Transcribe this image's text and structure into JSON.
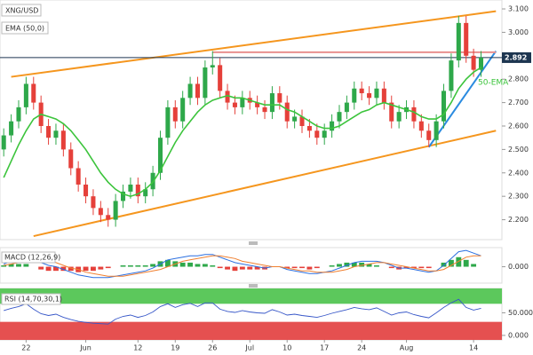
{
  "chart_data": {
    "type": "candlestick",
    "title": "XNG/USD",
    "xlim": [
      -0.5,
      66.8
    ],
    "ylim": [
      2.115,
      3.138
    ],
    "yticks": [
      {
        "value": 2.2,
        "label": "2.200"
      },
      {
        "value": 2.3,
        "label": "2.300"
      },
      {
        "value": 2.4,
        "label": "2.400"
      },
      {
        "value": 2.5,
        "label": "2.500"
      },
      {
        "value": 2.6,
        "label": "2.600"
      },
      {
        "value": 2.7,
        "label": "2.700"
      },
      {
        "value": 2.8,
        "label": "2.800"
      },
      {
        "value": 2.9,
        "label": "2.900"
      },
      {
        "value": 3.0,
        "label": "3.000"
      },
      {
        "value": 3.1,
        "label": "3.100"
      }
    ],
    "xticks": [
      {
        "value": 3,
        "label": "22"
      },
      {
        "value": 11,
        "label": "Jun"
      },
      {
        "value": 18,
        "label": "12"
      },
      {
        "value": 23,
        "label": "19"
      },
      {
        "value": 28,
        "label": "26"
      },
      {
        "value": 33,
        "label": "Jul"
      },
      {
        "value": 38,
        "label": "10"
      },
      {
        "value": 43,
        "label": "17"
      },
      {
        "value": 48,
        "label": "24"
      },
      {
        "value": 54,
        "label": "Aug"
      },
      {
        "value": 63,
        "label": "14"
      }
    ],
    "up_color": "#2ea84a",
    "down_color": "#e5403a",
    "open": [
      2.5,
      2.56,
      2.62,
      2.68,
      2.78,
      2.7,
      2.6,
      2.55,
      2.58,
      2.5,
      2.42,
      2.35,
      2.3,
      2.25,
      2.22,
      2.2,
      2.28,
      2.32,
      2.35,
      2.3,
      2.33,
      2.4,
      2.55,
      2.68,
      2.62,
      2.72,
      2.78,
      2.72,
      2.85,
      2.86,
      2.75,
      2.7,
      2.68,
      2.72,
      2.7,
      2.68,
      2.66,
      2.74,
      2.7,
      2.62,
      2.64,
      2.6,
      2.58,
      2.55,
      2.58,
      2.62,
      2.66,
      2.7,
      2.76,
      2.74,
      2.72,
      2.76,
      2.7,
      2.62,
      2.66,
      2.68,
      2.62,
      2.58,
      2.54,
      2.62,
      2.75,
      2.88,
      3.04,
      2.9,
      2.84
    ],
    "high": [
      2.59,
      2.65,
      2.71,
      2.81,
      2.81,
      2.73,
      2.63,
      2.61,
      2.61,
      2.53,
      2.45,
      2.38,
      2.33,
      2.28,
      2.25,
      2.31,
      2.35,
      2.38,
      2.38,
      2.36,
      2.43,
      2.58,
      2.71,
      2.71,
      2.75,
      2.81,
      2.81,
      2.88,
      2.92,
      2.89,
      2.78,
      2.73,
      2.75,
      2.75,
      2.73,
      2.71,
      2.77,
      2.77,
      2.73,
      2.67,
      2.67,
      2.63,
      2.61,
      2.61,
      2.65,
      2.69,
      2.73,
      2.79,
      2.79,
      2.77,
      2.79,
      2.79,
      2.73,
      2.69,
      2.71,
      2.71,
      2.65,
      2.61,
      2.65,
      2.78,
      2.91,
      3.07,
      3.07,
      2.93,
      2.92
    ],
    "low": [
      2.47,
      2.53,
      2.59,
      2.65,
      2.67,
      2.57,
      2.52,
      2.52,
      2.47,
      2.39,
      2.32,
      2.27,
      2.22,
      2.19,
      2.17,
      2.17,
      2.25,
      2.29,
      2.27,
      2.27,
      2.3,
      2.37,
      2.52,
      2.59,
      2.59,
      2.69,
      2.69,
      2.69,
      2.82,
      2.72,
      2.67,
      2.65,
      2.65,
      2.67,
      2.65,
      2.63,
      2.63,
      2.67,
      2.59,
      2.59,
      2.57,
      2.55,
      2.52,
      2.52,
      2.55,
      2.59,
      2.63,
      2.67,
      2.71,
      2.69,
      2.69,
      2.67,
      2.59,
      2.59,
      2.63,
      2.59,
      2.55,
      2.51,
      2.51,
      2.59,
      2.72,
      2.85,
      2.87,
      2.81,
      2.81
    ],
    "close": [
      2.56,
      2.62,
      2.68,
      2.78,
      2.7,
      2.6,
      2.55,
      2.58,
      2.5,
      2.42,
      2.35,
      2.3,
      2.25,
      2.22,
      2.2,
      2.28,
      2.32,
      2.35,
      2.3,
      2.33,
      2.4,
      2.55,
      2.68,
      2.62,
      2.72,
      2.78,
      2.72,
      2.85,
      2.86,
      2.75,
      2.7,
      2.68,
      2.72,
      2.7,
      2.68,
      2.66,
      2.74,
      2.7,
      2.62,
      2.64,
      2.6,
      2.58,
      2.55,
      2.58,
      2.62,
      2.66,
      2.7,
      2.76,
      2.74,
      2.72,
      2.76,
      2.7,
      2.62,
      2.66,
      2.68,
      2.62,
      2.58,
      2.54,
      2.62,
      2.75,
      2.88,
      3.04,
      2.9,
      2.84,
      2.892
    ],
    "ema": {
      "label": "EMA (50,0)",
      "annotation": "50-EMA",
      "color": "#3cc43c",
      "values": [
        2.38,
        2.45,
        2.52,
        2.58,
        2.63,
        2.65,
        2.64,
        2.63,
        2.61,
        2.58,
        2.54,
        2.5,
        2.45,
        2.4,
        2.36,
        2.33,
        2.31,
        2.3,
        2.31,
        2.33,
        2.36,
        2.41,
        2.47,
        2.53,
        2.58,
        2.62,
        2.66,
        2.69,
        2.71,
        2.72,
        2.73,
        2.72,
        2.72,
        2.71,
        2.7,
        2.69,
        2.69,
        2.69,
        2.67,
        2.66,
        2.64,
        2.62,
        2.6,
        2.59,
        2.59,
        2.6,
        2.62,
        2.64,
        2.66,
        2.67,
        2.69,
        2.7,
        2.69,
        2.68,
        2.67,
        2.66,
        2.64,
        2.63,
        2.63,
        2.65,
        2.7,
        2.76,
        2.8,
        2.83,
        2.85
      ]
    },
    "trendlines": [
      {
        "color": "#f5961e",
        "x": [
          1,
          66
        ],
        "y": [
          2.81,
          3.09
        ]
      },
      {
        "color": "#f5961e",
        "x": [
          4,
          66
        ],
        "y": [
          2.13,
          2.58
        ]
      },
      {
        "color": "#2b8be0",
        "x": [
          57,
          66
        ],
        "y": [
          2.51,
          2.92
        ]
      },
      {
        "color": "#e8908f",
        "x": [
          28,
          66
        ],
        "y": [
          2.915,
          2.915
        ]
      }
    ],
    "price_line_color": "#1d3550",
    "macd": {
      "label": "MACD (12,26,9)",
      "ylim": [
        -0.12,
        0.14
      ],
      "yticks": [
        {
          "value": 0,
          "label": "0.000"
        }
      ],
      "macd_color": "#2b6fe0",
      "signal_color": "#f08030",
      "macd": [
        0.02,
        0.04,
        0.05,
        0.06,
        0.05,
        0.03,
        0.01,
        0.0,
        -0.02,
        -0.04,
        -0.06,
        -0.07,
        -0.08,
        -0.08,
        -0.08,
        -0.07,
        -0.06,
        -0.05,
        -0.04,
        -0.03,
        -0.01,
        0.02,
        0.05,
        0.06,
        0.07,
        0.08,
        0.08,
        0.09,
        0.09,
        0.07,
        0.05,
        0.03,
        0.02,
        0.01,
        0.0,
        -0.01,
        0.0,
        0.0,
        -0.02,
        -0.03,
        -0.04,
        -0.05,
        -0.05,
        -0.04,
        -0.03,
        -0.01,
        0.01,
        0.03,
        0.04,
        0.04,
        0.04,
        0.03,
        0.01,
        -0.01,
        -0.01,
        -0.02,
        -0.03,
        -0.04,
        -0.03,
        0.01,
        0.06,
        0.11,
        0.12,
        0.1,
        0.08
      ],
      "signal": [
        0.01,
        0.02,
        0.03,
        0.04,
        0.05,
        0.05,
        0.04,
        0.03,
        0.01,
        -0.01,
        -0.02,
        -0.04,
        -0.05,
        -0.06,
        -0.07,
        -0.07,
        -0.07,
        -0.06,
        -0.05,
        -0.04,
        -0.03,
        -0.02,
        0.0,
        0.02,
        0.04,
        0.05,
        0.06,
        0.07,
        0.08,
        0.08,
        0.07,
        0.06,
        0.04,
        0.03,
        0.02,
        0.01,
        0.0,
        0.0,
        -0.01,
        -0.02,
        -0.03,
        -0.03,
        -0.04,
        -0.04,
        -0.04,
        -0.03,
        -0.02,
        0.0,
        0.01,
        0.02,
        0.03,
        0.03,
        0.02,
        0.01,
        0.0,
        -0.01,
        -0.02,
        -0.03,
        -0.03,
        -0.02,
        0.01,
        0.04,
        0.07,
        0.08,
        0.08
      ],
      "hist": [
        0.01,
        0.02,
        0.02,
        0.02,
        0.0,
        -0.02,
        -0.03,
        -0.03,
        -0.03,
        -0.03,
        -0.04,
        -0.03,
        -0.03,
        -0.02,
        -0.01,
        0.0,
        0.01,
        0.01,
        0.01,
        0.01,
        0.02,
        0.04,
        0.05,
        0.04,
        0.03,
        0.03,
        0.02,
        0.02,
        0.01,
        -0.01,
        -0.02,
        -0.03,
        -0.02,
        -0.02,
        -0.02,
        -0.02,
        0.0,
        0.0,
        -0.01,
        -0.01,
        -0.01,
        -0.02,
        -0.01,
        0.0,
        0.01,
        0.02,
        0.03,
        0.03,
        0.03,
        0.02,
        0.01,
        0.0,
        -0.01,
        -0.02,
        -0.01,
        -0.01,
        -0.01,
        -0.01,
        0.0,
        0.03,
        0.05,
        0.07,
        0.05,
        0.02,
        0.0
      ]
    },
    "rsi": {
      "label": "RSI (14,70,30,1)",
      "ylim": [
        -10,
        104
      ],
      "yticks": [
        {
          "value": 0,
          "label": "0.000"
        },
        {
          "value": 50,
          "label": "50.000"
        }
      ],
      "overbought": 70,
      "oversold": 30,
      "line_color": "#3656c8",
      "overbought_color": "#5cc85c",
      "oversold_color": "#e55050",
      "values": [
        55,
        60,
        64,
        70,
        58,
        48,
        44,
        47,
        40,
        35,
        31,
        29,
        27,
        26,
        25,
        36,
        42,
        45,
        40,
        44,
        52,
        64,
        70,
        62,
        68,
        71,
        64,
        72,
        72,
        58,
        53,
        51,
        55,
        52,
        50,
        49,
        57,
        52,
        45,
        47,
        44,
        42,
        40,
        44,
        49,
        53,
        57,
        62,
        59,
        57,
        61,
        53,
        45,
        50,
        52,
        46,
        42,
        39,
        50,
        62,
        72,
        80,
        62,
        56,
        60
      ]
    }
  }
}
